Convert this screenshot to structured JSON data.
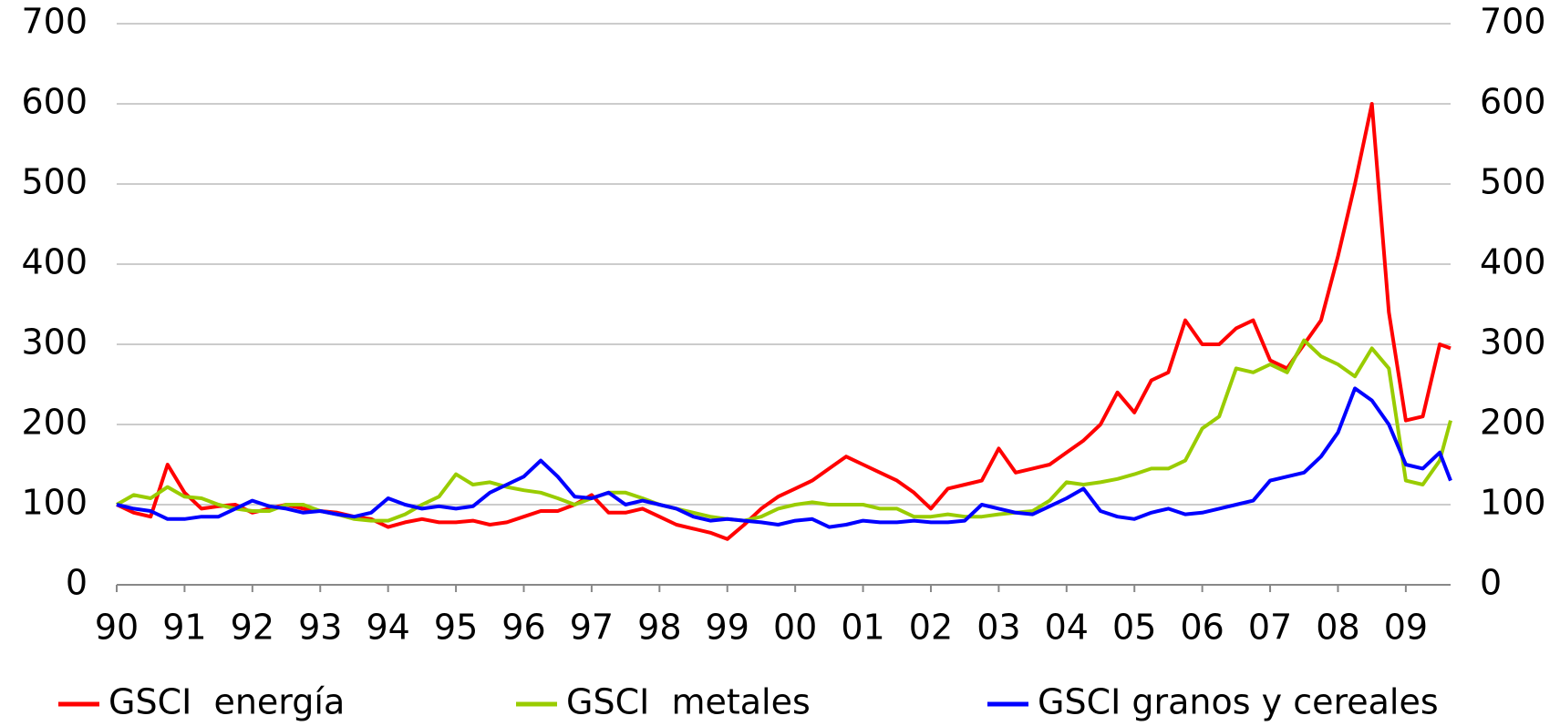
{
  "chart_data": {
    "type": "line",
    "x": [
      1990,
      1990.25,
      1990.5,
      1990.75,
      1991,
      1991.25,
      1991.5,
      1991.75,
      1992,
      1992.25,
      1992.5,
      1992.75,
      1993,
      1993.25,
      1993.5,
      1993.75,
      1994,
      1994.25,
      1994.5,
      1994.75,
      1995,
      1995.25,
      1995.5,
      1995.75,
      1996,
      1996.25,
      1996.5,
      1996.75,
      1997,
      1997.25,
      1997.5,
      1997.75,
      1998,
      1998.25,
      1998.5,
      1998.75,
      1999,
      1999.25,
      1999.5,
      1999.75,
      2000,
      2000.25,
      2000.5,
      2000.75,
      2001,
      2001.25,
      2001.5,
      2001.75,
      2002,
      2002.25,
      2002.5,
      2002.75,
      2003,
      2003.25,
      2003.5,
      2003.75,
      2004,
      2004.25,
      2004.5,
      2004.75,
      2005,
      2005.25,
      2005.5,
      2005.75,
      2006,
      2006.25,
      2006.5,
      2006.75,
      2007,
      2007.25,
      2007.5,
      2007.75,
      2008,
      2008.25,
      2008.5,
      2008.75,
      2009,
      2009.25,
      2009.5,
      2009.66
    ],
    "series": [
      {
        "name": "GSCI  energía",
        "color": "#ff0000",
        "values": [
          100,
          90,
          85,
          150,
          115,
          95,
          98,
          100,
          90,
          95,
          100,
          95,
          92,
          90,
          85,
          82,
          72,
          78,
          82,
          78,
          78,
          80,
          75,
          78,
          85,
          92,
          92,
          100,
          112,
          90,
          90,
          95,
          85,
          75,
          70,
          65,
          57,
          75,
          95,
          110,
          120,
          130,
          145,
          160,
          150,
          140,
          130,
          115,
          95,
          120,
          125,
          130,
          170,
          140,
          145,
          150,
          165,
          180,
          200,
          240,
          215,
          255,
          265,
          330,
          300,
          300,
          320,
          330,
          280,
          270,
          300,
          330,
          410,
          500,
          600,
          340,
          205,
          210,
          300,
          295
        ]
      },
      {
        "name": "GSCI  metales",
        "color": "#99cc00",
        "values": [
          100,
          112,
          108,
          122,
          110,
          108,
          100,
          95,
          92,
          92,
          100,
          100,
          92,
          88,
          82,
          80,
          80,
          88,
          100,
          110,
          138,
          125,
          128,
          122,
          118,
          115,
          108,
          100,
          108,
          115,
          115,
          108,
          100,
          95,
          90,
          85,
          82,
          80,
          85,
          95,
          100,
          103,
          100,
          100,
          100,
          95,
          95,
          85,
          85,
          88,
          85,
          85,
          88,
          90,
          92,
          105,
          128,
          125,
          128,
          132,
          138,
          145,
          145,
          155,
          195,
          210,
          270,
          265,
          275,
          265,
          305,
          285,
          275,
          260,
          295,
          270,
          130,
          125,
          155,
          205
        ]
      },
      {
        "name": "GSCI granos y cereales",
        "color": "#0000ff",
        "values": [
          100,
          95,
          92,
          82,
          82,
          85,
          85,
          95,
          105,
          98,
          95,
          90,
          92,
          88,
          85,
          90,
          108,
          100,
          95,
          98,
          95,
          98,
          115,
          125,
          135,
          155,
          135,
          110,
          108,
          115,
          100,
          105,
          100,
          95,
          85,
          80,
          82,
          80,
          78,
          75,
          80,
          82,
          72,
          75,
          80,
          78,
          78,
          80,
          78,
          78,
          80,
          100,
          95,
          90,
          88,
          98,
          108,
          120,
          92,
          85,
          82,
          90,
          95,
          88,
          90,
          95,
          100,
          105,
          130,
          135,
          140,
          160,
          190,
          245,
          230,
          200,
          150,
          145,
          165,
          130
        ]
      }
    ],
    "xlim": [
      1990,
      2009.66
    ],
    "xticks": [
      {
        "value": 1990,
        "label": "90"
      },
      {
        "value": 1991,
        "label": "91"
      },
      {
        "value": 1992,
        "label": "92"
      },
      {
        "value": 1993,
        "label": "93"
      },
      {
        "value": 1994,
        "label": "94"
      },
      {
        "value": 1995,
        "label": "95"
      },
      {
        "value": 1996,
        "label": "96"
      },
      {
        "value": 1997,
        "label": "97"
      },
      {
        "value": 1998,
        "label": "98"
      },
      {
        "value": 1999,
        "label": "99"
      },
      {
        "value": 2000,
        "label": "00"
      },
      {
        "value": 2001,
        "label": "01"
      },
      {
        "value": 2002,
        "label": "02"
      },
      {
        "value": 2003,
        "label": "03"
      },
      {
        "value": 2004,
        "label": "04"
      },
      {
        "value": 2005,
        "label": "05"
      },
      {
        "value": 2006,
        "label": "06"
      },
      {
        "value": 2007,
        "label": "07"
      },
      {
        "value": 2008,
        "label": "08"
      },
      {
        "value": 2009,
        "label": "09"
      }
    ],
    "ylim": [
      0,
      700
    ],
    "yticks": [
      0,
      100,
      200,
      300,
      400,
      500,
      600,
      700
    ],
    "y2lim": [
      0,
      700
    ],
    "y2ticks": [
      0,
      100,
      200,
      300,
      400,
      500,
      600,
      700
    ],
    "grid": true,
    "legend": "bottom"
  }
}
